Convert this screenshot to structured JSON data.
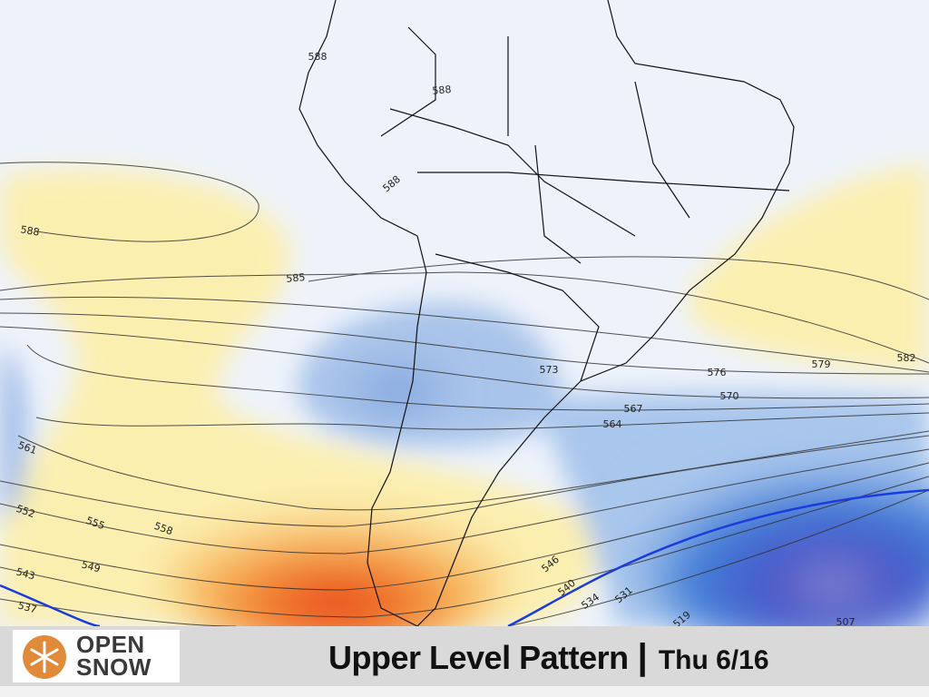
{
  "map": {
    "contour_labels": [
      "588",
      "588",
      "588",
      "588",
      "585",
      "582",
      "579",
      "576",
      "573",
      "570",
      "567",
      "564",
      "561",
      "558",
      "555",
      "552",
      "549",
      "546",
      "543",
      "540",
      "537",
      "534",
      "531",
      "519",
      "507"
    ]
  },
  "logo": {
    "line1": "OPEN",
    "line2": "SNOW"
  },
  "caption": {
    "title": "Upper Level Pattern",
    "separator": "|",
    "date": "Thu 6/16"
  }
}
